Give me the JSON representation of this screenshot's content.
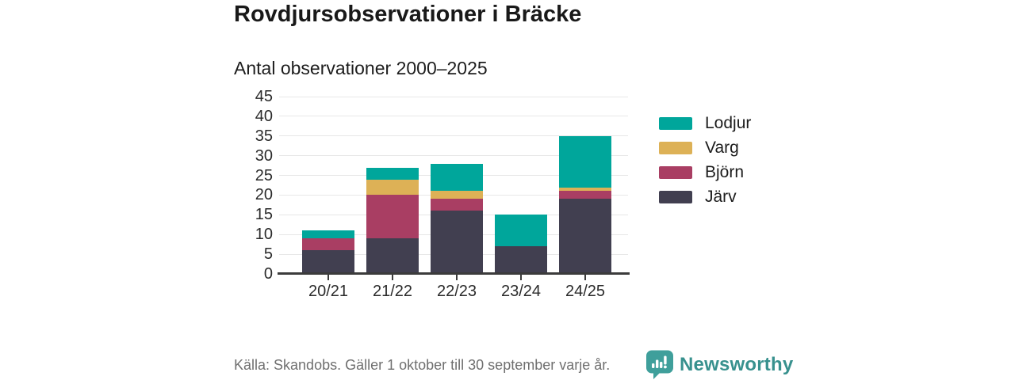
{
  "header": {
    "title": "Rovdjursobservationer i Bräcke",
    "subtitle": "Antal observationer 2000–2025"
  },
  "chart_data": {
    "type": "bar",
    "stacked": true,
    "title": "Rovdjursobservationer i Bräcke",
    "subtitle": "Antal observationer 2000–2025",
    "categories": [
      "20/21",
      "21/22",
      "22/23",
      "23/24",
      "24/25"
    ],
    "series": [
      {
        "name": "Järv",
        "color": "#413f50",
        "values": [
          6,
          9,
          16,
          7,
          19
        ]
      },
      {
        "name": "Björn",
        "color": "#a93e63",
        "values": [
          3,
          11,
          3,
          0,
          2
        ]
      },
      {
        "name": "Varg",
        "color": "#ddb156",
        "values": [
          0,
          4,
          2,
          0,
          1
        ]
      },
      {
        "name": "Lodjur",
        "color": "#00a69b",
        "values": [
          2,
          3,
          7,
          8,
          13
        ]
      }
    ],
    "totals": [
      11,
      27,
      28,
      15,
      35
    ],
    "ylim": [
      0,
      45
    ],
    "yticks": [
      0,
      5,
      10,
      15,
      20,
      25,
      30,
      35,
      40,
      45
    ],
    "xlabel": "",
    "ylabel": "",
    "grid": "horizontal",
    "legend": [
      "Lodjur",
      "Varg",
      "Björn",
      "Järv"
    ],
    "legend_position": "right"
  },
  "footer": {
    "source": "Källa: Skandobs. Gäller 1 oktober till 30 september varje år.",
    "brand": "Newsworthy"
  },
  "colors": {
    "lodjur": "#00a69b",
    "varg": "#ddb156",
    "bjorn": "#a93e63",
    "jarv": "#413f50",
    "axis": "#3b3b3b",
    "gridline": "#e7e7e7",
    "text": "#1d1d1d",
    "muted_text": "#6f6f6f",
    "brand_teal": "#38918e"
  }
}
